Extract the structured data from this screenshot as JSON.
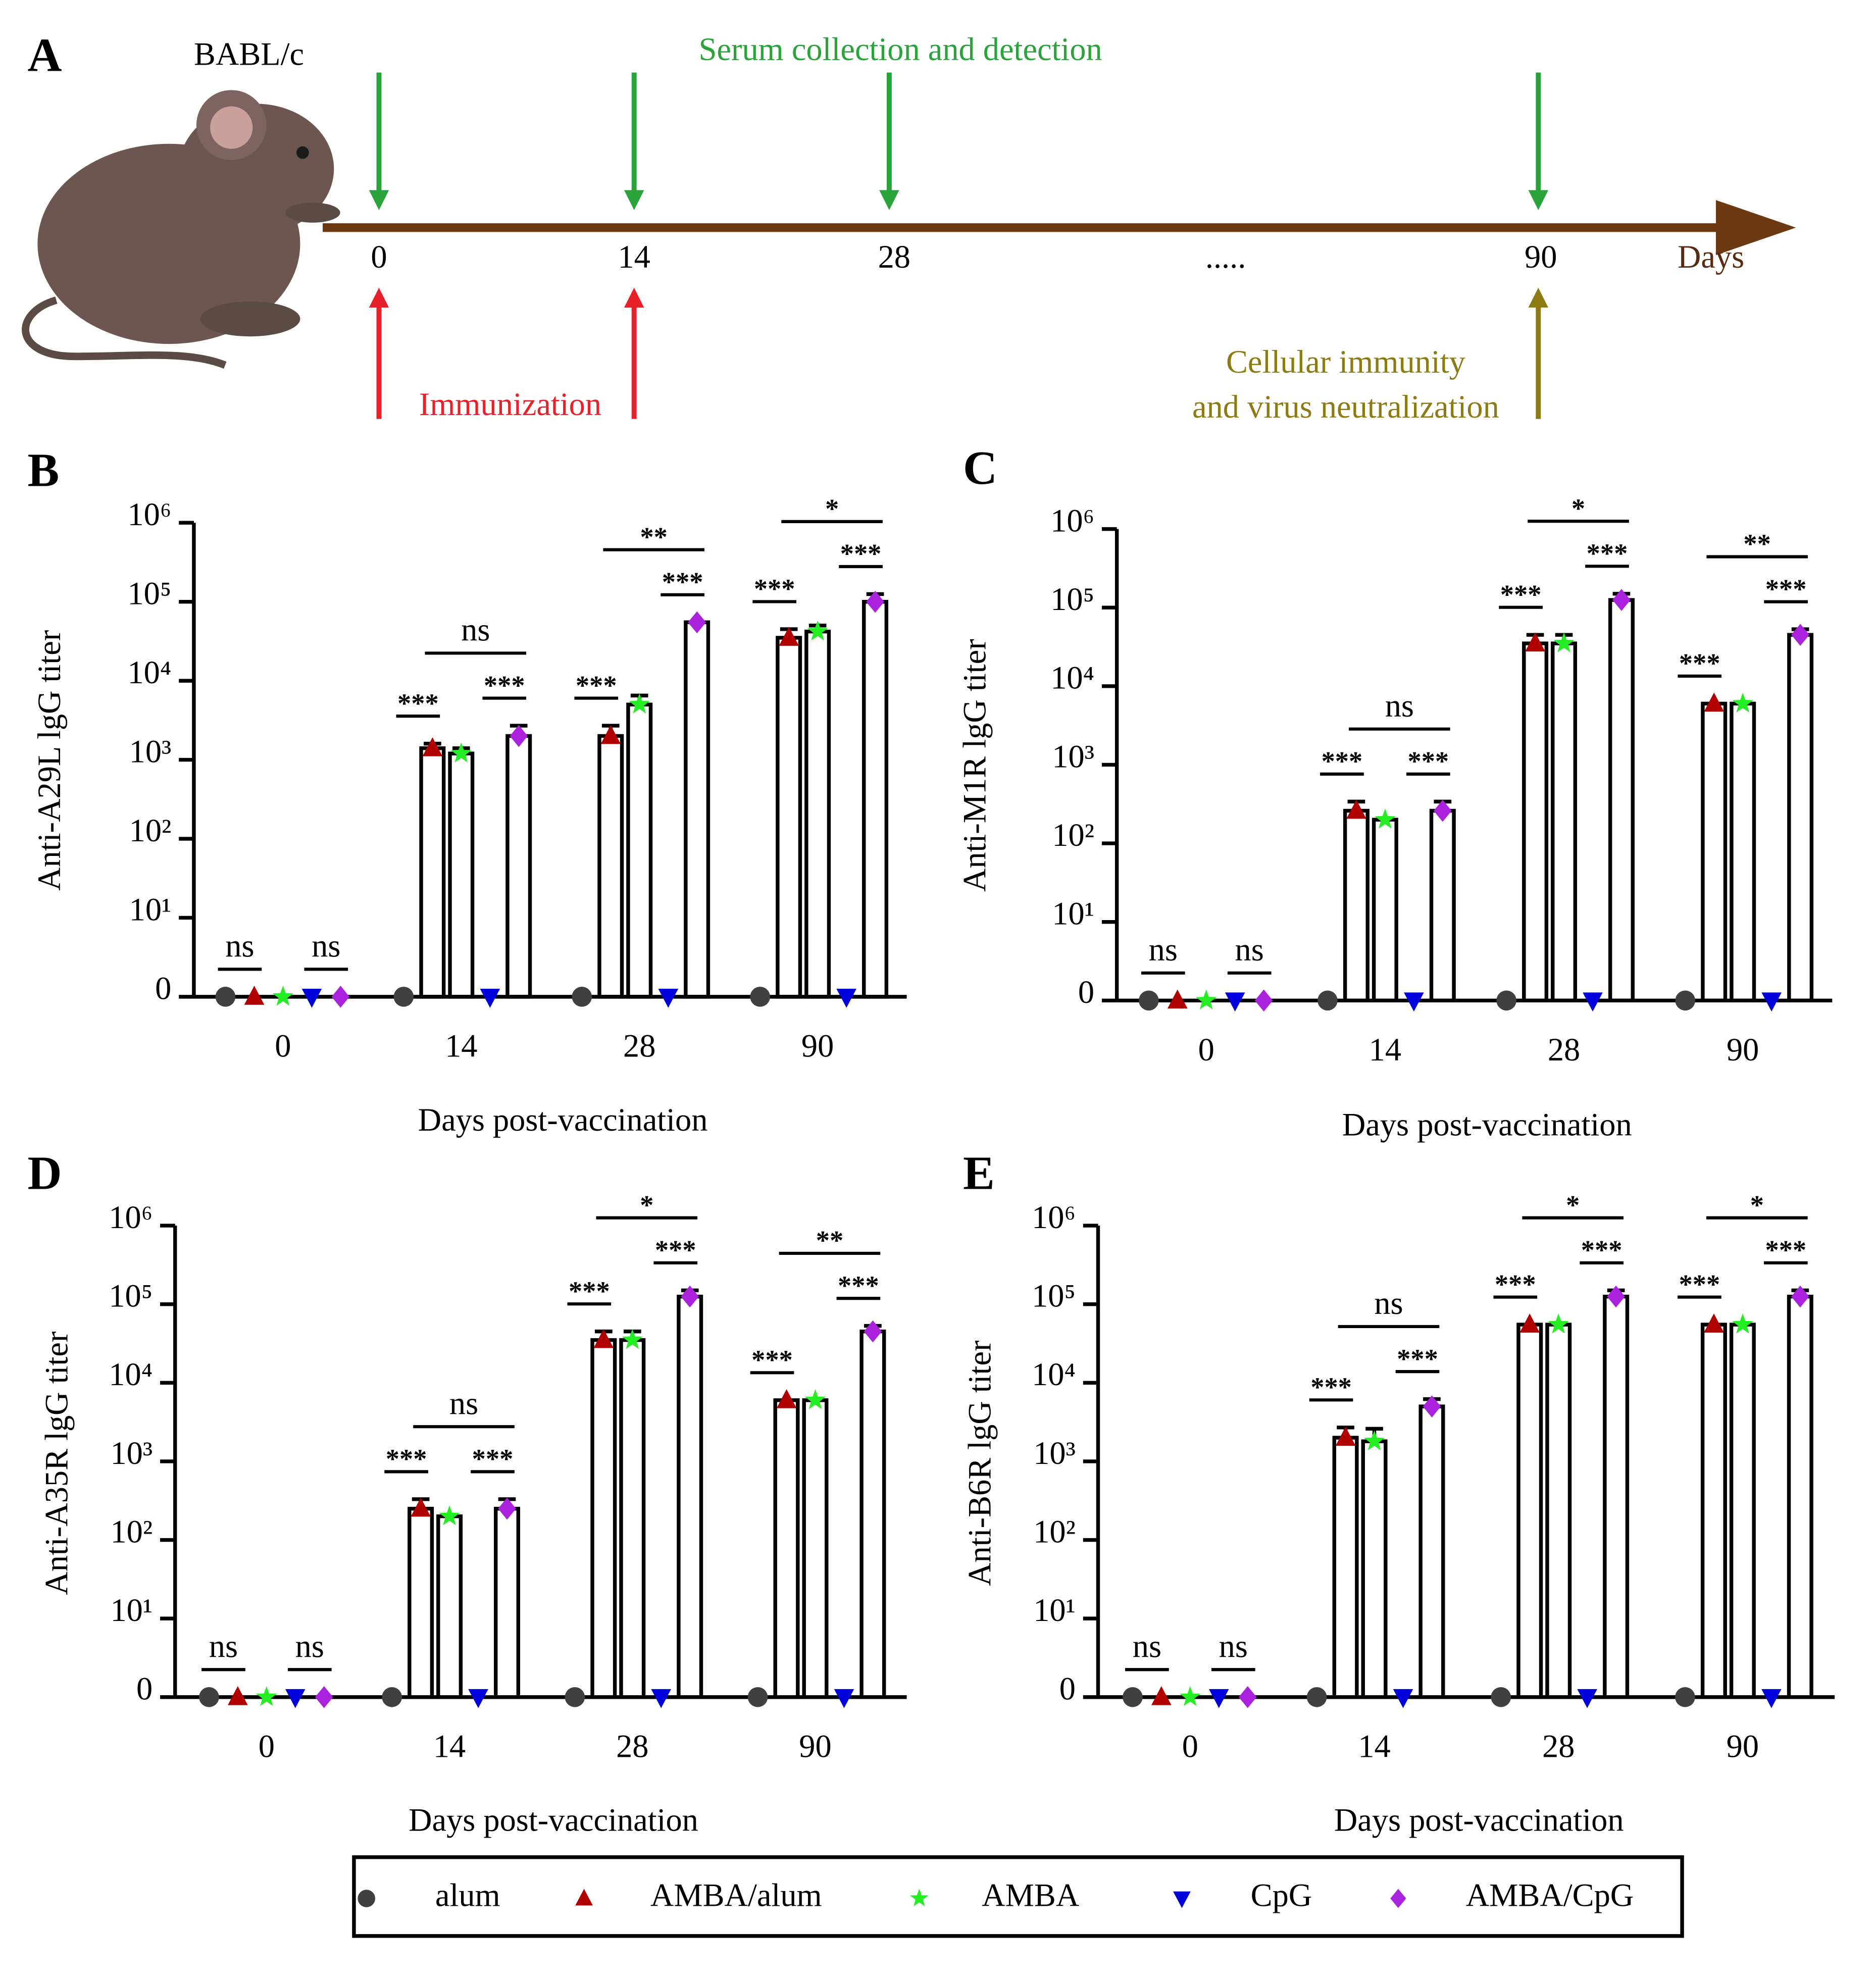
{
  "timeline": {
    "letter": "A",
    "strain": "BABL/c",
    "top_label": "Serum collection and detection",
    "days": [
      "0",
      "14",
      "28",
      ".....",
      "90"
    ],
    "unit": "Days",
    "immunization": "Immunization",
    "cellular": [
      "Cellular immunity",
      "and virus neutralization"
    ]
  },
  "chart_data": [
    {
      "type": "bar",
      "letter": "B",
      "ylabel": "Anti-A29L lgG titer",
      "xlabel": "Days post-vaccination",
      "log": true,
      "categories": [
        "0",
        "14",
        "28",
        "90"
      ],
      "ylim": [
        1,
        1000000
      ],
      "yticks": [
        {
          "value": 1,
          "label": "0"
        },
        {
          "value": 10,
          "label": "10¹"
        },
        {
          "value": 100,
          "label": "10²"
        },
        {
          "value": 1000,
          "label": "10³"
        },
        {
          "value": 10000,
          "label": "10⁴"
        },
        {
          "value": 100000,
          "label": "10⁵"
        },
        {
          "value": 1000000,
          "label": "10⁶"
        }
      ],
      "series": [
        {
          "name": "alum",
          "color": "#404040",
          "marker": "circle",
          "values": [
            1,
            1,
            1,
            1
          ],
          "errors": [
            0,
            0,
            0,
            0
          ]
        },
        {
          "name": "AMBA/alum",
          "color": "#b00000",
          "marker": "triangle",
          "values": [
            1,
            1400,
            2000,
            35000
          ],
          "errors": [
            0,
            200,
            700,
            10000
          ]
        },
        {
          "name": "AMBA",
          "color": "#22ee22",
          "marker": "star",
          "values": [
            1,
            1200,
            5000,
            42000
          ],
          "errors": [
            0,
            200,
            1500,
            8000
          ]
        },
        {
          "name": "CpG",
          "color": "#0000dd",
          "marker": "triangle-down",
          "values": [
            1,
            1,
            1,
            1
          ],
          "errors": [
            0,
            0,
            0,
            0
          ]
        },
        {
          "name": "AMBA/CpG",
          "color": "#aa22dd",
          "marker": "diamond",
          "values": [
            1,
            2000,
            55000,
            100000
          ],
          "errors": [
            0,
            700,
            0,
            25000
          ]
        }
      ],
      "annotations": [
        {
          "text": "ns",
          "category": 0,
          "from": 0,
          "to": 1
        },
        {
          "text": "ns",
          "category": 0,
          "from": 3,
          "to": 4
        },
        {
          "text": "***",
          "category": 1,
          "from": 0,
          "to": 1
        },
        {
          "text": "***",
          "category": 1,
          "from": 3,
          "to": 4
        },
        {
          "text": "ns",
          "category": 1,
          "from": 1,
          "to": 4
        },
        {
          "text": "***",
          "category": 2,
          "from": 0,
          "to": 1
        },
        {
          "text": "***",
          "category": 2,
          "from": 3,
          "to": 4
        },
        {
          "text": "**",
          "category": 2,
          "from": 1,
          "to": 4
        },
        {
          "text": "***",
          "category": 3,
          "from": 0,
          "to": 1
        },
        {
          "text": "***",
          "category": 3,
          "from": 3,
          "to": 4
        },
        {
          "text": "*",
          "category": 3,
          "from": 1,
          "to": 4
        }
      ]
    },
    {
      "type": "bar",
      "letter": "C",
      "ylabel": "Anti-M1R lgG titer",
      "xlabel": "Days post-vaccination",
      "log": true,
      "categories": [
        "0",
        "14",
        "28",
        "90"
      ],
      "ylim": [
        1,
        1000000
      ],
      "yticks": [
        {
          "value": 1,
          "label": "0"
        },
        {
          "value": 10,
          "label": "10¹"
        },
        {
          "value": 100,
          "label": "10²"
        },
        {
          "value": 1000,
          "label": "10³"
        },
        {
          "value": 10000,
          "label": "10⁴"
        },
        {
          "value": 100000,
          "label": "10⁵"
        },
        {
          "value": 1000000,
          "label": "10⁶"
        }
      ],
      "series": [
        {
          "name": "alum",
          "color": "#404040",
          "marker": "circle",
          "values": [
            1,
            1,
            1,
            1
          ],
          "errors": [
            0,
            0,
            0,
            0
          ]
        },
        {
          "name": "AMBA/alum",
          "color": "#b00000",
          "marker": "triangle",
          "values": [
            1,
            260,
            35000,
            6000
          ],
          "errors": [
            0,
            80,
            10000,
            0
          ]
        },
        {
          "name": "AMBA",
          "color": "#22ee22",
          "marker": "star",
          "values": [
            1,
            200,
            35000,
            6000
          ],
          "errors": [
            0,
            0,
            10000,
            0
          ]
        },
        {
          "name": "CpG",
          "color": "#0000dd",
          "marker": "triangle-down",
          "values": [
            1,
            1,
            1,
            1
          ],
          "errors": [
            0,
            0,
            0,
            0
          ]
        },
        {
          "name": "AMBA/CpG",
          "color": "#aa22dd",
          "marker": "diamond",
          "values": [
            1,
            260,
            125000,
            45000
          ],
          "errors": [
            0,
            80,
            25000,
            8000
          ]
        }
      ],
      "annotations": [
        {
          "text": "ns",
          "category": 0,
          "from": 0,
          "to": 1
        },
        {
          "text": "ns",
          "category": 0,
          "from": 3,
          "to": 4
        },
        {
          "text": "***",
          "category": 1,
          "from": 0,
          "to": 1
        },
        {
          "text": "***",
          "category": 1,
          "from": 3,
          "to": 4
        },
        {
          "text": "ns",
          "category": 1,
          "from": 1,
          "to": 4
        },
        {
          "text": "***",
          "category": 2,
          "from": 0,
          "to": 1
        },
        {
          "text": "***",
          "category": 2,
          "from": 3,
          "to": 4
        },
        {
          "text": "*",
          "category": 2,
          "from": 1,
          "to": 4
        },
        {
          "text": "***",
          "category": 3,
          "from": 0,
          "to": 1
        },
        {
          "text": "***",
          "category": 3,
          "from": 3,
          "to": 4
        },
        {
          "text": "**",
          "category": 3,
          "from": 1,
          "to": 4
        }
      ]
    },
    {
      "type": "bar",
      "letter": "D",
      "ylabel": "Anti-A35R lgG titer",
      "xlabel": "Days post-vaccination",
      "log": true,
      "categories": [
        "0",
        "14",
        "28",
        "90"
      ],
      "ylim": [
        1,
        1000000
      ],
      "yticks": [
        {
          "value": 1,
          "label": "0"
        },
        {
          "value": 10,
          "label": "10¹"
        },
        {
          "value": 100,
          "label": "10²"
        },
        {
          "value": 1000,
          "label": "10³"
        },
        {
          "value": 10000,
          "label": "10⁴"
        },
        {
          "value": 100000,
          "label": "10⁵"
        },
        {
          "value": 1000000,
          "label": "10⁶"
        }
      ],
      "series": [
        {
          "name": "alum",
          "color": "#404040",
          "marker": "circle",
          "values": [
            1,
            1,
            1,
            1
          ],
          "errors": [
            0,
            0,
            0,
            0
          ]
        },
        {
          "name": "AMBA/alum",
          "color": "#b00000",
          "marker": "triangle",
          "values": [
            1,
            250,
            35000,
            6000
          ],
          "errors": [
            0,
            80,
            10000,
            0
          ]
        },
        {
          "name": "AMBA",
          "color": "#22ee22",
          "marker": "star",
          "values": [
            1,
            200,
            35000,
            6000
          ],
          "errors": [
            0,
            0,
            10000,
            0
          ]
        },
        {
          "name": "CpG",
          "color": "#0000dd",
          "marker": "triangle-down",
          "values": [
            1,
            1,
            1,
            1
          ],
          "errors": [
            0,
            0,
            0,
            0
          ]
        },
        {
          "name": "AMBA/CpG",
          "color": "#aa22dd",
          "marker": "diamond",
          "values": [
            1,
            250,
            125000,
            45000
          ],
          "errors": [
            0,
            80,
            25000,
            8000
          ]
        }
      ],
      "annotations": [
        {
          "text": "ns",
          "category": 0,
          "from": 0,
          "to": 1
        },
        {
          "text": "ns",
          "category": 0,
          "from": 3,
          "to": 4
        },
        {
          "text": "***",
          "category": 1,
          "from": 0,
          "to": 1
        },
        {
          "text": "***",
          "category": 1,
          "from": 3,
          "to": 4
        },
        {
          "text": "ns",
          "category": 1,
          "from": 1,
          "to": 4
        },
        {
          "text": "***",
          "category": 2,
          "from": 0,
          "to": 1
        },
        {
          "text": "***",
          "category": 2,
          "from": 3,
          "to": 4
        },
        {
          "text": "*",
          "category": 2,
          "from": 1,
          "to": 4
        },
        {
          "text": "***",
          "category": 3,
          "from": 0,
          "to": 1
        },
        {
          "text": "***",
          "category": 3,
          "from": 3,
          "to": 4
        },
        {
          "text": "**",
          "category": 3,
          "from": 1,
          "to": 4
        }
      ]
    },
    {
      "type": "bar",
      "letter": "E",
      "ylabel": "Anti-B6R lgG titer",
      "xlabel": "Days post-vaccination",
      "log": true,
      "categories": [
        "0",
        "14",
        "28",
        "90"
      ],
      "ylim": [
        1,
        1000000
      ],
      "yticks": [
        {
          "value": 1,
          "label": "0"
        },
        {
          "value": 10,
          "label": "10¹"
        },
        {
          "value": 100,
          "label": "10²"
        },
        {
          "value": 1000,
          "label": "10³"
        },
        {
          "value": 10000,
          "label": "10⁴"
        },
        {
          "value": 100000,
          "label": "10⁵"
        },
        {
          "value": 1000000,
          "label": "10⁶"
        }
      ],
      "series": [
        {
          "name": "alum",
          "color": "#404040",
          "marker": "circle",
          "values": [
            1,
            1,
            1,
            1
          ],
          "errors": [
            0,
            0,
            0,
            0
          ]
        },
        {
          "name": "AMBA/alum",
          "color": "#b00000",
          "marker": "triangle",
          "values": [
            1,
            2000,
            55000,
            55000
          ],
          "errors": [
            0,
            700,
            0,
            0
          ]
        },
        {
          "name": "AMBA",
          "color": "#22ee22",
          "marker": "star",
          "values": [
            1,
            1800,
            55000,
            55000
          ],
          "errors": [
            0,
            800,
            0,
            0
          ]
        },
        {
          "name": "CpG",
          "color": "#0000dd",
          "marker": "triangle-down",
          "values": [
            1,
            1,
            1,
            1
          ],
          "errors": [
            0,
            0,
            0,
            0
          ]
        },
        {
          "name": "AMBA/CpG",
          "color": "#aa22dd",
          "marker": "diamond",
          "values": [
            1,
            5000,
            125000,
            125000
          ],
          "errors": [
            0,
            1200,
            25000,
            25000
          ]
        }
      ],
      "annotations": [
        {
          "text": "ns",
          "category": 0,
          "from": 0,
          "to": 1
        },
        {
          "text": "ns",
          "category": 0,
          "from": 3,
          "to": 4
        },
        {
          "text": "***",
          "category": 1,
          "from": 0,
          "to": 1
        },
        {
          "text": "***",
          "category": 1,
          "from": 3,
          "to": 4
        },
        {
          "text": "ns",
          "category": 1,
          "from": 1,
          "to": 4
        },
        {
          "text": "***",
          "category": 2,
          "from": 0,
          "to": 1
        },
        {
          "text": "***",
          "category": 2,
          "from": 3,
          "to": 4
        },
        {
          "text": "*",
          "category": 2,
          "from": 1,
          "to": 4
        },
        {
          "text": "***",
          "category": 3,
          "from": 0,
          "to": 1
        },
        {
          "text": "***",
          "category": 3,
          "from": 3,
          "to": 4
        },
        {
          "text": "*",
          "category": 3,
          "from": 1,
          "to": 4
        }
      ]
    }
  ]
}
